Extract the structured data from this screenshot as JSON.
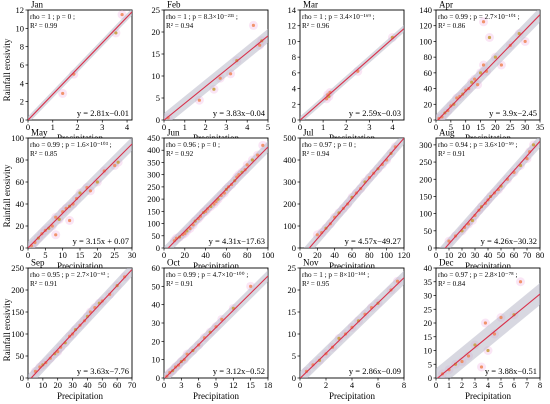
{
  "figure": {
    "y_axis_label": "Rainfall erosivity",
    "x_axis_label": "Precipitation",
    "colors": {
      "point": "#f08a5d",
      "point_alt": "#c8a040",
      "fit_line": "#d9304a",
      "ci_band": "#b8b8c8",
      "density": "#f3c6e8"
    }
  },
  "chart_data": [
    {
      "type": "scatter",
      "month": "Jan",
      "stat1": "rho = 1 ; p = 0 ;",
      "stat2": "R² = 0.99",
      "equation": "y = 2.81x−0.01",
      "xlim": [
        0,
        4.2
      ],
      "ylim": [
        0,
        12
      ],
      "xticks": [
        0,
        1,
        2,
        3,
        4
      ],
      "yticks": [
        0,
        2,
        4,
        6,
        8,
        10,
        12
      ],
      "slope": 2.81,
      "intercept": -0.01,
      "band": 0.25,
      "x": [
        1.4,
        1.85,
        3.55,
        3.8
      ],
      "y": [
        2.9,
        5.0,
        9.5,
        11.5
      ]
    },
    {
      "type": "scatter",
      "month": "Feb",
      "stat1": "rho = 1 ; p = 8.3×10⁻²³¹ ;",
      "stat2": "R² = 0.94",
      "equation": "y = 3.83x−0.04",
      "xlim": [
        0,
        5
      ],
      "ylim": [
        0,
        25
      ],
      "xticks": [
        0,
        1,
        2,
        3,
        4,
        5
      ],
      "yticks": [
        0,
        5,
        10,
        15,
        20,
        25
      ],
      "slope": 3.83,
      "intercept": -0.04,
      "band": 1.0,
      "x": [
        0.2,
        1.7,
        2.4,
        2.7,
        3.2,
        3.5,
        4.3,
        4.6,
        4.7
      ],
      "y": [
        0.5,
        4.5,
        7.0,
        9.5,
        10.5,
        13.5,
        21.5,
        17.0,
        18.0
      ]
    },
    {
      "type": "scatter",
      "month": "Mar",
      "stat1": "rho = 1 ; p = 3.4×10⁻¹⁶⁹ ;",
      "stat2": "R² = 0.96",
      "equation": "y = 2.59x−0.03",
      "xlim": [
        0,
        4.5
      ],
      "ylim": [
        0,
        14
      ],
      "xticks": [
        0,
        1,
        2,
        3,
        4
      ],
      "yticks": [
        0,
        2,
        4,
        6,
        8,
        10,
        12,
        14
      ],
      "slope": 2.59,
      "intercept": -0.03,
      "band": 0.3,
      "x": [
        1.15,
        1.2,
        1.25,
        1.3,
        2.5,
        4.0
      ],
      "y": [
        2.7,
        3.2,
        3.0,
        3.5,
        6.2,
        10.5
      ]
    },
    {
      "type": "scatter",
      "month": "Apr",
      "stat1": "rho = 0.99 ; p = 2.7×10⁻¹⁰¹ ;",
      "stat2": "R² = 0.86",
      "equation": "y = 3.9x−2.45",
      "xlim": [
        0,
        35
      ],
      "ylim": [
        0,
        140
      ],
      "xticks": [
        0,
        5,
        10,
        15,
        20,
        25,
        30,
        35
      ],
      "yticks": [
        0,
        20,
        40,
        60,
        80,
        100,
        120,
        140
      ],
      "slope": 3.9,
      "intercept": -2.45,
      "band": 6,
      "x": [
        1,
        2,
        3,
        4,
        5,
        6,
        7,
        8,
        9,
        10,
        11,
        12,
        13,
        14,
        15,
        16,
        17,
        20,
        22,
        25,
        28,
        30,
        16,
        18
      ],
      "y": [
        2,
        4,
        9,
        12,
        18,
        20,
        28,
        30,
        33,
        38,
        40,
        48,
        52,
        45,
        60,
        70,
        62,
        80,
        70,
        95,
        110,
        100,
        125,
        105
      ]
    },
    {
      "type": "scatter",
      "month": "May",
      "stat1": "rho = 0.99 ; p = 1.6×10⁻¹⁰³ ;",
      "stat2": "R² = 0.85",
      "equation": "y = 3.15x + 0.07",
      "xlim": [
        0,
        30
      ],
      "ylim": [
        0,
        100
      ],
      "xticks": [
        0,
        5,
        10,
        15,
        20,
        25,
        30
      ],
      "yticks": [
        0,
        20,
        40,
        60,
        80,
        100
      ],
      "slope": 3.15,
      "intercept": 0.07,
      "band": 4,
      "x": [
        1,
        2,
        3,
        4,
        5,
        6,
        7,
        8,
        9,
        10,
        11,
        12,
        13,
        14,
        15,
        17,
        18,
        20,
        22,
        25,
        26,
        12,
        8
      ],
      "y": [
        2,
        5,
        9,
        13,
        16,
        18,
        20,
        28,
        26,
        33,
        36,
        38,
        40,
        45,
        50,
        55,
        52,
        60,
        70,
        75,
        78,
        25,
        12
      ]
    },
    {
      "type": "scatter",
      "month": "Jun",
      "stat1": "rho = 0.96 ; p = 0 ;",
      "stat2": "R² = 0.92",
      "equation": "y = 4.31x−17.63",
      "xlim": [
        0,
        100
      ],
      "ylim": [
        0,
        450
      ],
      "xticks": [
        0,
        20,
        40,
        60,
        80,
        100
      ],
      "yticks": [
        0,
        50,
        100,
        150,
        200,
        250,
        300,
        350,
        400,
        450
      ],
      "slope": 4.31,
      "intercept": -17.63,
      "band": 15,
      "x": [
        10,
        12,
        15,
        18,
        20,
        22,
        25,
        28,
        30,
        33,
        35,
        38,
        40,
        42,
        45,
        48,
        50,
        52,
        55,
        58,
        60,
        62,
        65,
        68,
        70,
        72,
        75,
        78,
        80,
        85,
        90,
        95
      ],
      "y": [
        30,
        40,
        45,
        55,
        60,
        70,
        80,
        95,
        110,
        120,
        130,
        145,
        150,
        160,
        170,
        180,
        190,
        200,
        215,
        225,
        240,
        250,
        260,
        275,
        290,
        300,
        310,
        320,
        340,
        360,
        380,
        420
      ]
    },
    {
      "type": "scatter",
      "month": "Jul",
      "stat1": "rho = 0.97 ; p = 0 ;",
      "stat2": "R² = 0.94",
      "equation": "y = 4.57x−49.27",
      "xlim": [
        0,
        120
      ],
      "ylim": [
        0,
        500
      ],
      "xticks": [
        0,
        20,
        40,
        60,
        80,
        100,
        120
      ],
      "yticks": [
        0,
        100,
        200,
        300,
        400,
        500
      ],
      "slope": 4.57,
      "intercept": -49.27,
      "band": 18,
      "x": [
        20,
        25,
        30,
        35,
        40,
        45,
        50,
        55,
        60,
        65,
        70,
        75,
        80,
        85,
        90,
        95,
        100,
        105,
        110
      ],
      "y": [
        60,
        70,
        90,
        110,
        140,
        160,
        180,
        200,
        230,
        250,
        270,
        300,
        320,
        340,
        360,
        380,
        400,
        430,
        460
      ]
    },
    {
      "type": "scatter",
      "month": "Aug",
      "stat1": "rho = 0.94 ; p = 3.6×10⁻⁵⁹ ;",
      "stat2": "R² = 0.91",
      "equation": "y = 4.26x−30.32",
      "xlim": [
        0,
        80
      ],
      "ylim": [
        0,
        320
      ],
      "xticks": [
        0,
        10,
        20,
        30,
        40,
        50,
        60,
        70,
        80
      ],
      "yticks": [
        0,
        50,
        100,
        150,
        200,
        250,
        300
      ],
      "slope": 4.26,
      "intercept": -30.32,
      "band": 12,
      "x": [
        10,
        15,
        20,
        22,
        25,
        28,
        30,
        33,
        35,
        38,
        40,
        42,
        45,
        48,
        50,
        55,
        60,
        65,
        70,
        72,
        75
      ],
      "y": [
        20,
        35,
        50,
        60,
        70,
        80,
        95,
        110,
        120,
        130,
        140,
        150,
        160,
        170,
        180,
        200,
        220,
        240,
        260,
        280,
        300
      ]
    },
    {
      "type": "scatter",
      "month": "Sep",
      "stat1": "rho = 0.95 ; p = 2.7×10⁻⁶³ ;",
      "stat2": "R² = 0.91",
      "equation": "y = 3.63x−7.76",
      "xlim": [
        0,
        70
      ],
      "ylim": [
        0,
        250
      ],
      "xticks": [
        0,
        10,
        20,
        30,
        40,
        50,
        60,
        70
      ],
      "yticks": [
        0,
        50,
        100,
        150,
        200,
        250
      ],
      "slope": 3.63,
      "intercept": -7.76,
      "band": 10,
      "x": [
        5,
        8,
        10,
        12,
        15,
        18,
        20,
        22,
        25,
        28,
        30,
        32,
        35,
        38,
        40,
        42,
        45,
        48,
        50,
        55,
        60,
        65
      ],
      "y": [
        15,
        25,
        30,
        35,
        45,
        55,
        60,
        70,
        80,
        95,
        100,
        110,
        120,
        130,
        140,
        150,
        160,
        170,
        175,
        190,
        210,
        230
      ]
    },
    {
      "type": "scatter",
      "month": "Oct",
      "stat1": "rho = 0.99 ; p = 4.7×10⁻¹⁰⁰ ;",
      "stat2": "R² = 0.91",
      "equation": "y = 3.12x−0.52",
      "xlim": [
        0,
        18
      ],
      "ylim": [
        0,
        60
      ],
      "xticks": [
        0,
        3,
        6,
        9,
        12,
        15,
        18
      ],
      "yticks": [
        0,
        10,
        20,
        30,
        40,
        50,
        60
      ],
      "slope": 3.12,
      "intercept": -0.52,
      "band": 2,
      "x": [
        0.5,
        1,
        1.5,
        2,
        2.5,
        3,
        3.5,
        4,
        5,
        6,
        7,
        8,
        9,
        10,
        12,
        15
      ],
      "y": [
        1,
        3,
        4,
        6,
        7,
        9,
        10,
        13,
        15,
        18,
        22,
        25,
        28,
        32,
        38,
        50
      ]
    },
    {
      "type": "scatter",
      "month": "Nov",
      "stat1": "rho = 1 ; p = 8×10⁻¹⁴⁴ ;",
      "stat2": "R² = 0.95",
      "equation": "y = 2.86x−0.09",
      "xlim": [
        0,
        8
      ],
      "ylim": [
        0,
        25
      ],
      "xticks": [
        0,
        2,
        4,
        6,
        8
      ],
      "yticks": [
        0,
        5,
        10,
        15,
        20,
        25
      ],
      "slope": 2.86,
      "intercept": -0.09,
      "band": 1,
      "x": [
        0.5,
        1,
        1.5,
        2,
        2.5,
        3,
        3.5,
        4,
        4.5,
        5,
        5.5,
        6,
        7,
        7.5
      ],
      "y": [
        1.5,
        3,
        4,
        5.5,
        7,
        9,
        10,
        11.5,
        13,
        14.5,
        16,
        17,
        20,
        22
      ]
    },
    {
      "type": "scatter",
      "month": "Dec",
      "stat1": "rho = 0.97 ; p = 2.8×10⁻⁷⁸ ;",
      "stat2": "R² = 0.84",
      "equation": "y = 3.88x−0.51",
      "xlim": [
        0,
        8
      ],
      "ylim": [
        0,
        40
      ],
      "xticks": [
        0,
        1,
        2,
        3,
        4,
        5,
        6,
        7,
        8
      ],
      "yticks": [
        0,
        5,
        10,
        15,
        20,
        25,
        30,
        35,
        40
      ],
      "slope": 3.88,
      "intercept": -0.51,
      "band": 2.5,
      "x": [
        0.5,
        1,
        1.5,
        2,
        2.5,
        3,
        3.5,
        3.8,
        4,
        4.5,
        5,
        6,
        6.5
      ],
      "y": [
        1.5,
        3,
        5,
        6,
        8,
        12,
        4,
        20,
        10,
        16,
        22,
        23,
        35
      ]
    }
  ]
}
